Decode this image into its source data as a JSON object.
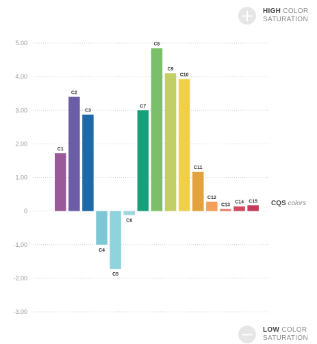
{
  "chart_data": {
    "type": "bar",
    "categories": [
      "C1",
      "C2",
      "C3",
      "C4",
      "C5",
      "C6",
      "C7",
      "C8",
      "C9",
      "C10",
      "C11",
      "C12",
      "C13",
      "C14",
      "C15"
    ],
    "values": [
      1.72,
      3.4,
      2.87,
      -1.0,
      -1.72,
      -0.12,
      3.0,
      4.85,
      4.1,
      3.93,
      1.17,
      0.28,
      0.06,
      0.14,
      0.17
    ],
    "colors": [
      "#9a5a9a",
      "#6b5ea6",
      "#1f6aa6",
      "#7ec8d6",
      "#8fd3dc",
      "#9fd8de",
      "#17a07a",
      "#7cbf6a",
      "#c2cf66",
      "#f0cf4a",
      "#e3a23e",
      "#f2a05a",
      "#e57b6a",
      "#d14a5e",
      "#c43a5a"
    ],
    "ylim": [
      -3,
      5
    ],
    "yticks": [
      "5.00",
      "4.00",
      "3.00",
      "2.00",
      "1.00",
      "0",
      "-1.00",
      "-2.00",
      "-3.00"
    ],
    "xlabel_bold": "CQS",
    "xlabel_italic": "colors",
    "grid": true
  },
  "top_label": {
    "bold": "HIGH",
    "rest": "COLOR",
    "sub": "SATURATION",
    "symbol": "+"
  },
  "bottom_label": {
    "bold": "LOW",
    "rest": "COLOR",
    "sub": "SATURATION",
    "symbol": "−"
  }
}
